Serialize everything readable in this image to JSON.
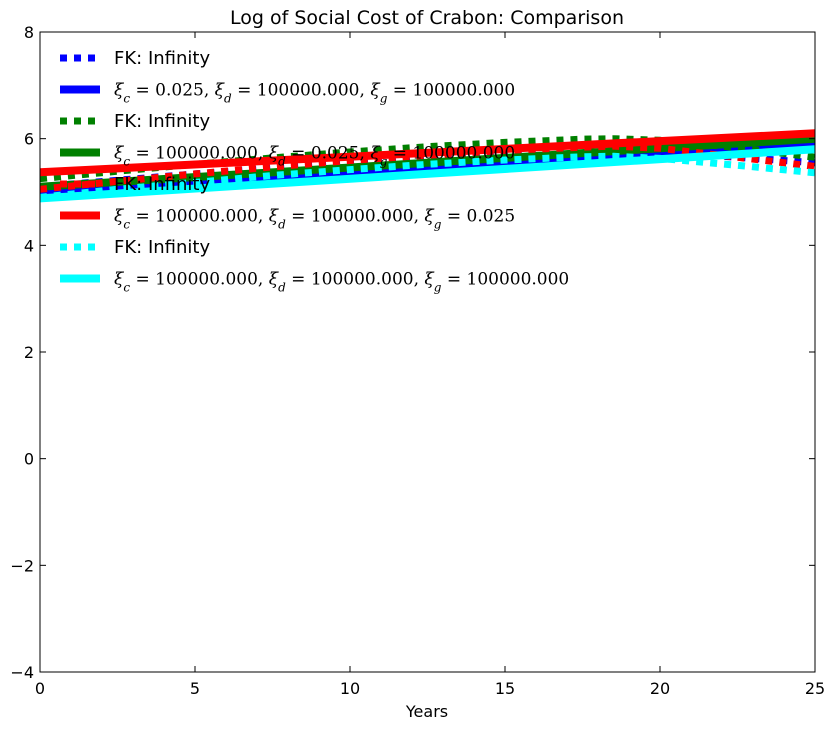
{
  "chart_data": {
    "type": "line",
    "title": "Log of Social Cost of Crabon: Comparison",
    "xlabel": "Years",
    "ylabel": "",
    "xlim": [
      0,
      25
    ],
    "ylim": [
      -4,
      8
    ],
    "xticks": [
      0,
      5,
      10,
      15,
      20,
      25
    ],
    "yticks": [
      -4,
      -2,
      0,
      2,
      4,
      6,
      8
    ],
    "xtick_labels": [
      "0",
      "5",
      "10",
      "15",
      "20",
      "25"
    ],
    "ytick_labels": [
      "−4",
      "−2",
      "0",
      "2",
      "4",
      "6",
      "8"
    ],
    "legend_position": "upper-left",
    "series": [
      {
        "name": "FK: Infinity",
        "color": "#0000ff",
        "style": "dotted",
        "x": [
          0,
          2.5,
          5,
          7.5,
          10,
          12.5,
          15,
          17.5,
          18.5,
          20,
          22.5,
          25
        ],
        "y": [
          5.1,
          5.22,
          5.34,
          5.45,
          5.55,
          5.64,
          5.72,
          5.78,
          5.79,
          5.76,
          5.65,
          5.55
        ]
      },
      {
        "name": "ξ_c = 0.025, ξ_d = 100000.000, ξ_g = 100000.000",
        "legend_parts": [
          "ξ",
          "c",
          " = 0.025, ",
          "ξ",
          "d",
          " = 100000.000, ",
          "ξ",
          "g",
          " = 100000.000"
        ],
        "color": "#0000ff",
        "style": "solid",
        "x": [
          0,
          25
        ],
        "y": [
          5.0,
          5.88
        ]
      },
      {
        "name": "FK: Infinity",
        "color": "#008000",
        "style": "dotted",
        "x": [
          0,
          2.5,
          5,
          7.5,
          10,
          12.5,
          15,
          17.5,
          18.5,
          20,
          22.5,
          25
        ],
        "y": [
          5.25,
          5.39,
          5.52,
          5.64,
          5.75,
          5.85,
          5.93,
          5.99,
          6.0,
          5.97,
          5.83,
          5.65
        ]
      },
      {
        "name": "ξ_c = 100000.000, ξ_d = 0.025, ξ_g = 100000.000",
        "legend_parts": [
          "ξ",
          "c",
          " = 100000.000, ",
          "ξ",
          "d",
          " = 0.025, ",
          "ξ",
          "g",
          " = 100000.000"
        ],
        "color": "#008000",
        "style": "solid",
        "x": [
          0,
          25
        ],
        "y": [
          5.1,
          6.0
        ]
      },
      {
        "name": "FK: Infinity",
        "color": "#ff0000",
        "style": "dotted",
        "x": [
          0,
          2.5,
          5,
          7.5,
          10,
          12.5,
          15,
          17.5,
          18.5,
          20,
          22.5,
          25
        ],
        "y": [
          5.05,
          5.2,
          5.34,
          5.47,
          5.59,
          5.69,
          5.78,
          5.84,
          5.86,
          5.82,
          5.65,
          5.48
        ]
      },
      {
        "name": "ξ_c = 100000.000, ξ_d = 100000.000, ξ_g = 0.025",
        "legend_parts": [
          "ξ",
          "c",
          " = 100000.000, ",
          "ξ",
          "d",
          " = 100000.000, ",
          "ξ",
          "g",
          " = 0.025"
        ],
        "color": "#ff0000",
        "style": "solid",
        "x": [
          0,
          25
        ],
        "y": [
          5.37,
          6.1
        ]
      },
      {
        "name": "FK: Infinity",
        "color": "#00ffff",
        "style": "dotted",
        "x": [
          0,
          2.5,
          5,
          7.5,
          10,
          12.5,
          15,
          17.5,
          18.5,
          20,
          22.5,
          25
        ],
        "y": [
          4.9,
          5.05,
          5.18,
          5.31,
          5.42,
          5.52,
          5.6,
          5.66,
          5.67,
          5.63,
          5.5,
          5.36
        ]
      },
      {
        "name": "ξ_c = 100000.000, ξ_d = 100000.000, ξ_g = 100000.000",
        "legend_parts": [
          "ξ",
          "c",
          " = 100000.000, ",
          "ξ",
          "d",
          " = 100000.000, ",
          "ξ",
          "g",
          " = 100000.000"
        ],
        "color": "#00ffff",
        "style": "solid",
        "x": [
          0,
          25
        ],
        "y": [
          4.88,
          5.8
        ]
      }
    ]
  }
}
